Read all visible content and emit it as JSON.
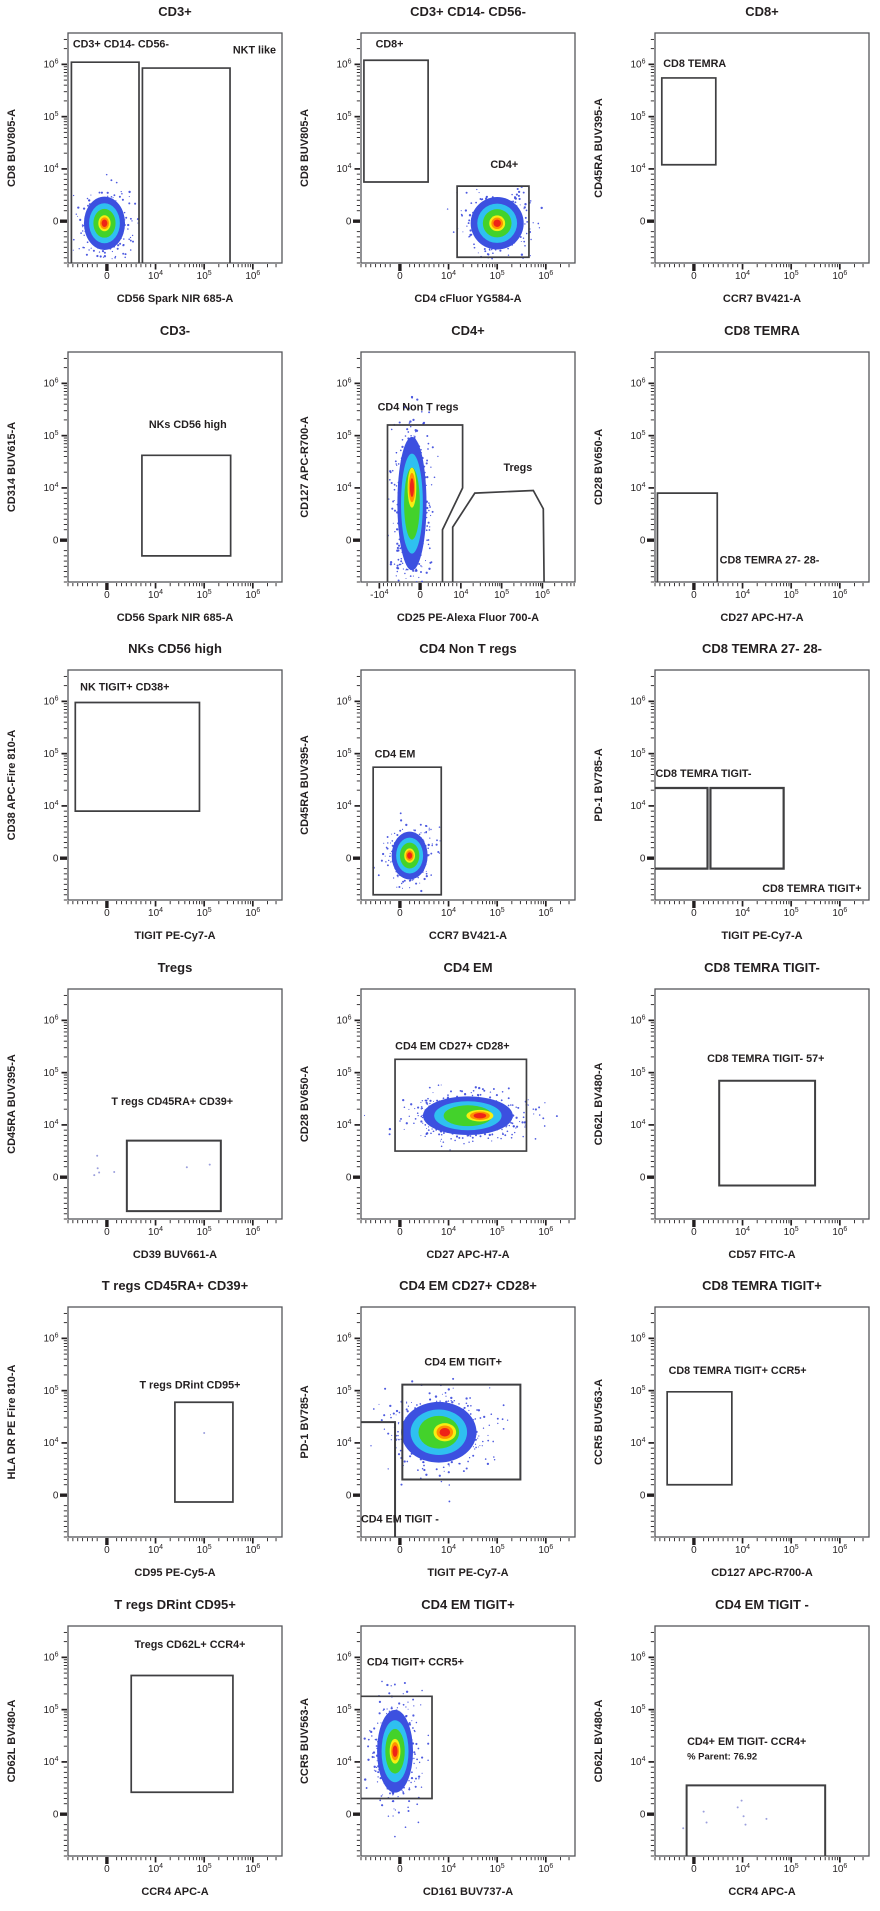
{
  "figure": {
    "background": "#ffffff",
    "frame_color": "#55565a",
    "text_color": "#231f20",
    "gate_color": "#3f3f41",
    "density_palette": {
      "scatter": "#3b49dd",
      "rings": [
        {
          "color": "#3c50e0",
          "mult": 2.0
        },
        {
          "color": "#2fc0f0",
          "mult": 1.5
        },
        {
          "color": "#43d22b",
          "mult": 1.08
        },
        {
          "color": "#f7ee12",
          "mult": 0.6,
          "hot": true
        },
        {
          "color": "#ff9100",
          "mult": 0.44,
          "hot": true
        },
        {
          "color": "#ee2417",
          "mult": 0.28,
          "hot": true
        }
      ]
    }
  },
  "chart_data": [
    {
      "type": "scatter",
      "title": "CD3+",
      "xlabel": "CD56 Spark NIR 685-A",
      "ylabel": "CD8 BUV805-A",
      "x_ticks": [
        0,
        10000,
        100000,
        1000000
      ],
      "y_ticks": [
        0,
        10000,
        100000,
        1000000
      ],
      "gates": [
        {
          "shape": "rect",
          "label": "CD3+ CD14- CD56-",
          "x": [
            -7300,
            6600
          ],
          "y": [
            -8300,
            1100000
          ],
          "label_pos": [
            -7000,
            2100000
          ],
          "label_anchor": "start"
        },
        {
          "shape": "rect",
          "label": "NKT like",
          "x": [
            7300,
            340000
          ],
          "y": [
            -8300,
            850000
          ],
          "label_pos": [
            3000000,
            1600000
          ],
          "label_anchor": "end"
        }
      ],
      "populations": [
        {
          "kind": "blob",
          "cx": -500,
          "cy": -400,
          "sx": 0.048,
          "sy": 0.058,
          "n": 320
        }
      ]
    },
    {
      "type": "scatter",
      "title": "CD3+ CD14- CD56-",
      "xlabel": "CD4 cFluor YG584-A",
      "ylabel": "CD8 BUV805-A",
      "x_ticks": [
        0,
        10000,
        100000,
        1000000
      ],
      "y_ticks": [
        0,
        10000,
        100000,
        1000000
      ],
      "gates": [
        {
          "shape": "rect",
          "label": "CD8+",
          "x": [
            -7400,
            5800
          ],
          "y": [
            7500,
            1200000
          ],
          "label_pos": [
            -5000,
            2100000
          ],
          "label_anchor": "start"
        },
        {
          "shape": "rect",
          "label": "CD4+",
          "x": [
            15000,
            450000
          ],
          "y": [
            -6900,
            6700
          ],
          "label_pos": [
            140000,
            10500
          ],
          "label_anchor": "middle"
        }
      ],
      "populations": [
        {
          "kind": "blob",
          "cx": 100000,
          "cy": -400,
          "sx": 0.062,
          "sy": 0.057,
          "n": 340
        }
      ]
    },
    {
      "type": "scatter",
      "title": "CD8+",
      "xlabel": "CCR7 BV421-A",
      "ylabel": "CD45RA BUV395-A",
      "x_ticks": [
        0,
        10000,
        100000,
        1000000
      ],
      "y_ticks": [
        0,
        10000,
        100000,
        1000000
      ],
      "gates": [
        {
          "shape": "rect",
          "label": "CD8 TEMRA",
          "x": [
            -6600,
            4500
          ],
          "y": [
            12000,
            550000
          ],
          "label_pos": [
            -6300,
            900000
          ],
          "label_anchor": "start"
        }
      ],
      "populations": []
    },
    {
      "type": "scatter",
      "title": "CD3-",
      "xlabel": "CD56 Spark NIR 685-A",
      "ylabel": "CD314 BUV615-A",
      "x_ticks": [
        0,
        10000,
        100000,
        1000000
      ],
      "y_ticks": [
        0,
        10000,
        100000,
        1000000
      ],
      "gates": [
        {
          "shape": "rect",
          "label": "NKs CD56 high",
          "x": [
            7200,
            350000
          ],
          "y": [
            -3000,
            42000
          ],
          "label_pos": [
            46000,
            140000
          ],
          "label_anchor": "middle"
        }
      ],
      "populations": []
    },
    {
      "type": "scatter",
      "title": "CD4+",
      "xlabel": "CD25 PE-Alexa Fluor 700-A",
      "ylabel": "CD127 APC-R700-A",
      "x_ticks": [
        -10000,
        0,
        10000,
        100000,
        1000000
      ],
      "y_ticks": [
        0,
        10000,
        100000,
        1000000
      ],
      "x_range_u": [
        -1.45,
        3.8
      ],
      "gates": [
        {
          "shape": "polygon",
          "label": "CD4 Non T regs",
          "points": [
            [
              -8000,
              -9000
            ],
            [
              -8000,
              160000
            ],
            [
              11000,
              160000
            ],
            [
              11000,
              10000
            ],
            [
              5500,
              2000
            ],
            [
              5500,
              -9000
            ]
          ],
          "label_pos": [
            -11000,
            300000
          ],
          "label_anchor": "start"
        },
        {
          "shape": "polygon",
          "label": "Tregs",
          "points": [
            [
              8000,
              -8500
            ],
            [
              8000,
              2500
            ],
            [
              22000,
              9000
            ],
            [
              600000,
              9500
            ],
            [
              1050000,
              6000
            ],
            [
              1100000,
              -8500
            ]
          ],
          "label_pos": [
            250000,
            21000
          ],
          "label_anchor": "middle"
        }
      ],
      "populations": [
        {
          "kind": "blob",
          "cx": -2000,
          "cy": 7000,
          "sx": 0.034,
          "sy": 0.145,
          "n": 520,
          "hot_dy": 16
        }
      ]
    },
    {
      "type": "scatter",
      "title": "CD8 TEMRA",
      "xlabel": "CD27 APC-H7-A",
      "ylabel": "CD28 BV650-A",
      "x_ticks": [
        0,
        10000,
        100000,
        1000000
      ],
      "y_ticks": [
        0,
        10000,
        100000,
        1000000
      ],
      "gates": [
        {
          "shape": "rect",
          "label": "CD8 TEMRA 27- 28-",
          "x": [
            -7500,
            4800
          ],
          "y": [
            -9000,
            9000
          ],
          "label_pos": [
            5300,
            -4500
          ],
          "label_anchor": "start"
        }
      ],
      "populations": []
    },
    {
      "type": "scatter",
      "title": "NKs CD56 high",
      "xlabel": "TIGIT PE-Cy7-A",
      "ylabel": "CD38 APC-Fire 810-A",
      "x_ticks": [
        0,
        10000,
        100000,
        1000000
      ],
      "y_ticks": [
        0,
        10000,
        100000,
        1000000
      ],
      "gates": [
        {
          "shape": "rect",
          "label": "NK TIGIT+ CD38+",
          "x": [
            -6500,
            80000
          ],
          "y": [
            9000,
            950000
          ],
          "label_pos": [
            -5500,
            1600000
          ],
          "label_anchor": "start"
        }
      ],
      "populations": []
    },
    {
      "type": "scatter",
      "title": "CD4 Non T regs",
      "xlabel": "CCR7 BV421-A",
      "ylabel": "CD45RA BUV395-A",
      "x_ticks": [
        0,
        10000,
        100000,
        1000000
      ],
      "y_ticks": [
        0,
        10000,
        100000,
        1000000
      ],
      "gates": [
        {
          "shape": "rect",
          "label": "CD4 EM",
          "x": [
            -5500,
            8500
          ],
          "y": [
            -7000,
            55000
          ],
          "label_pos": [
            -5200,
            85000
          ],
          "label_anchor": "start"
        }
      ],
      "populations": [
        {
          "kind": "blob",
          "cx": 2000,
          "cy": 500,
          "sx": 0.042,
          "sy": 0.052,
          "n": 300
        }
      ]
    },
    {
      "type": "scatter",
      "title": "CD8 TEMRA 27- 28-",
      "xlabel": "TIGIT PE-Cy7-A",
      "ylabel": "PD-1 BV785-A",
      "x_ticks": [
        0,
        10000,
        100000,
        1000000
      ],
      "y_ticks": [
        0,
        10000,
        100000,
        1000000
      ],
      "gates": [
        {
          "shape": "rect",
          "label": "CD8 TEMRA TIGIT-",
          "x": [
            -8300,
            2800
          ],
          "y": [
            -2000,
            22000
          ],
          "label_pos": [
            -7900,
            36000
          ],
          "label_anchor": "start",
          "lw": 2.2
        },
        {
          "shape": "rect",
          "label": "CD8 TEMRA TIGIT+",
          "x": [
            3400,
            70000
          ],
          "y": [
            -2000,
            22000
          ],
          "label_pos": [
            2800000,
            -6500
          ],
          "label_anchor": "end",
          "lw": 2.2
        }
      ],
      "populations": []
    },
    {
      "type": "scatter",
      "title": "Tregs",
      "xlabel": "CD39 BUV661-A",
      "ylabel": "CD45RA BUV395-A",
      "x_ticks": [
        0,
        10000,
        100000,
        1000000
      ],
      "y_ticks": [
        0,
        10000,
        100000,
        1000000
      ],
      "gates": [
        {
          "shape": "rect",
          "label": "T regs CD45RA+ CD39+",
          "x": [
            4100,
            220000
          ],
          "y": [
            -6500,
            7000
          ],
          "label_pos": [
            22000,
            24000
          ],
          "label_anchor": "middle",
          "lw": 2.0
        }
      ],
      "populations": [
        {
          "kind": "dots",
          "points": [
            [
              -2000,
              4100
            ],
            [
              -1900,
              1700
            ],
            [
              -1600,
              900
            ],
            [
              1500,
              1000
            ],
            [
              44000,
              1900
            ],
            [
              130000,
              2400
            ],
            [
              -2600,
              400
            ]
          ]
        }
      ]
    },
    {
      "type": "scatter",
      "title": "CD4 EM",
      "xlabel": "CD27 APC-H7-A",
      "ylabel": "CD28 BV650-A",
      "x_ticks": [
        0,
        10000,
        100000,
        1000000
      ],
      "y_ticks": [
        0,
        10000,
        100000,
        1000000
      ],
      "gates": [
        {
          "shape": "rect",
          "label": "CD4 EM CD27+ CD28+",
          "x": [
            -1000,
            400000
          ],
          "y": [
            5000,
            180000
          ],
          "label_pos": [
            12000,
            280000
          ],
          "label_anchor": "middle"
        }
      ],
      "populations": [
        {
          "kind": "blob",
          "cx": 25000,
          "cy": 15000,
          "sx": 0.105,
          "sy": 0.042,
          "n": 560,
          "hot_dx": 12
        }
      ]
    },
    {
      "type": "scatter",
      "title": "CD8 TEMRA TIGIT-",
      "xlabel": "CD57 FITC-A",
      "ylabel": "CD62L BV480-A",
      "x_ticks": [
        0,
        10000,
        100000,
        1000000
      ],
      "y_ticks": [
        0,
        10000,
        100000,
        1000000
      ],
      "gates": [
        {
          "shape": "rect",
          "label": "CD8 TEMRA  TIGIT- 57+",
          "x": [
            5200,
            310000
          ],
          "y": [
            -1600,
            70000
          ],
          "label_pos": [
            30000,
            160000
          ],
          "label_anchor": "middle",
          "lw": 2.0
        }
      ],
      "populations": []
    },
    {
      "type": "scatter",
      "title": "T regs CD45RA+ CD39+",
      "xlabel": "CD95 PE-Cy5-A",
      "ylabel": "HLA DR PE Fire 810-A",
      "x_ticks": [
        0,
        10000,
        100000,
        1000000
      ],
      "y_ticks": [
        0,
        10000,
        100000,
        1000000
      ],
      "gates": [
        {
          "shape": "rect",
          "label": "T regs DRint CD95+",
          "x": [
            25000,
            390000
          ],
          "y": [
            -1300,
            60000
          ],
          "label_pos": [
            51000,
            110000
          ],
          "label_anchor": "middle"
        }
      ],
      "populations": [
        {
          "kind": "dots",
          "points": [
            [
              100000,
              15500
            ]
          ]
        }
      ]
    },
    {
      "type": "scatter",
      "title": "CD4 EM CD27+ CD28+",
      "xlabel": "TIGIT PE-Cy7-A",
      "ylabel": "PD-1 BV785-A",
      "x_ticks": [
        0,
        10000,
        100000,
        1000000
      ],
      "y_ticks": [
        0,
        10000,
        100000,
        1000000
      ],
      "gates": [
        {
          "shape": "rect",
          "label": "CD4 EM TIGIT+",
          "x": [
            500,
            300000
          ],
          "y": [
            3000,
            130000
          ],
          "label_pos": [
            20000,
            300000
          ],
          "label_anchor": "middle",
          "lw": 2.0
        },
        {
          "shape": "rect",
          "label": "CD4 EM TIGIT -",
          "x": [
            -8600,
            -1000
          ],
          "y": [
            -9000,
            25000
          ],
          "label_pos": [
            -8000,
            -5200
          ],
          "label_anchor": "start",
          "lw": 2.0
        }
      ],
      "populations": [
        {
          "kind": "blob",
          "cx": 8000,
          "cy": 16000,
          "sx": 0.088,
          "sy": 0.066,
          "n": 540,
          "hot_dx": 6
        }
      ]
    },
    {
      "type": "scatter",
      "title": "CD8 TEMRA TIGIT+",
      "xlabel": "CD127 APC-R700-A",
      "ylabel": "CCR5 BUV563-A",
      "x_ticks": [
        0,
        10000,
        100000,
        1000000
      ],
      "y_ticks": [
        0,
        10000,
        100000,
        1000000
      ],
      "gates": [
        {
          "shape": "rect",
          "label": "CD8 TEMRA TIGIT+ CCR5+",
          "x": [
            -5500,
            7800
          ],
          "y": [
            2000,
            95000
          ],
          "label_pos": [
            -5200,
            210000
          ],
          "label_anchor": "start"
        }
      ],
      "populations": []
    },
    {
      "type": "scatter",
      "title": "T regs DRint CD95+",
      "xlabel": "CCR4 APC-A",
      "ylabel": "CD62L BV480-A",
      "x_ticks": [
        0,
        10000,
        100000,
        1000000
      ],
      "y_ticks": [
        0,
        10000,
        100000,
        1000000
      ],
      "gates": [
        {
          "shape": "rect",
          "label": "Tregs CD62L+ CCR4+",
          "x": [
            5000,
            390000
          ],
          "y": [
            4200,
            450000
          ],
          "label_pos": [
            51000,
            1500000
          ],
          "label_anchor": "middle"
        }
      ],
      "populations": []
    },
    {
      "type": "scatter",
      "title": "CD4 EM TIGIT+",
      "xlabel": "CD161 BUV737-A",
      "ylabel": "CCR5 BUV563-A",
      "x_ticks": [
        0,
        10000,
        100000,
        1000000
      ],
      "y_ticks": [
        0,
        10000,
        100000,
        1000000
      ],
      "gates": [
        {
          "shape": "rect",
          "label": "CD4 TIGIT+ CCR5+",
          "x": [
            -8600,
            6600
          ],
          "y": [
            3000,
            180000
          ],
          "label_pos": [
            -6800,
            700000
          ],
          "label_anchor": "start"
        }
      ],
      "populations": [
        {
          "kind": "blob",
          "cx": -1000,
          "cy": 16000,
          "sx": 0.042,
          "sy": 0.09,
          "n": 430
        }
      ]
    },
    {
      "type": "scatter",
      "title": "CD4 EM TIGIT -",
      "xlabel": "CCR4 APC-A",
      "ylabel": "CD62L BV480-A",
      "x_ticks": [
        0,
        10000,
        100000,
        1000000
      ],
      "y_ticks": [
        0,
        10000,
        100000,
        1000000
      ],
      "gates": [
        {
          "shape": "rect",
          "label": "CD4+ EM TIGIT- CCR4+",
          "x": [
            -1500,
            500000
          ],
          "y": [
            -9000,
            5500
          ],
          "label_pos": [
            -1400,
            21000
          ],
          "label_anchor": "start",
          "lw": 2.0
        }
      ],
      "annotations": [
        {
          "text": "% Parent: 76.92",
          "pos": [
            -1400,
            11000
          ],
          "anchor": "start",
          "size": 9.5
        }
      ],
      "populations": [
        {
          "kind": "dots",
          "points": [
            [
              2000,
              500
            ],
            [
              2600,
              -1600
            ],
            [
              9000,
              1300
            ],
            [
              10500,
              -400
            ],
            [
              11500,
              -2000
            ],
            [
              31000,
              -900
            ],
            [
              -2200,
              -2700
            ],
            [
              9800,
              2600
            ]
          ]
        }
      ]
    }
  ]
}
